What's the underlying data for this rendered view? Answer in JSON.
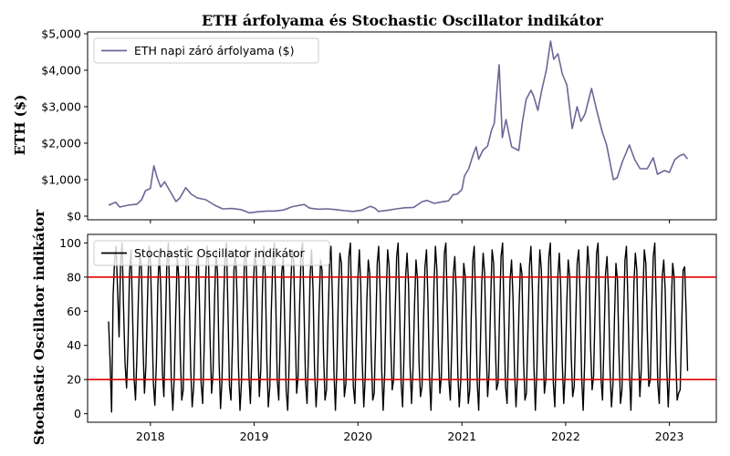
{
  "chart_data": [
    {
      "type": "line",
      "title": "ETH árfolyama és Stochastic Oscillator indikátor",
      "xlabel": "",
      "ylabel": "ETH ($)",
      "x_ticks": [
        "2018",
        "2019",
        "2020",
        "2021",
        "2022",
        "2023"
      ],
      "xlim": [
        "2017-05-25",
        "2023-06-15"
      ],
      "ylim": [
        -100,
        5050
      ],
      "y_ticks": [
        0,
        1000,
        2000,
        3000,
        4000,
        5000
      ],
      "y_tick_labels": [
        "$0",
        "$1,000",
        "$2,000",
        "$3,000",
        "$4,000",
        "$5,000"
      ],
      "legend_position": "upper-left",
      "series": [
        {
          "name": "ETH napi záró árfolyama ($)",
          "color": "#6b6796",
          "x": [
            "2017-08-07",
            "2017-09-01",
            "2017-09-15",
            "2017-10-15",
            "2017-11-15",
            "2017-12-01",
            "2017-12-15",
            "2018-01-01",
            "2018-01-13",
            "2018-01-25",
            "2018-02-06",
            "2018-02-20",
            "2018-03-10",
            "2018-04-01",
            "2018-04-15",
            "2018-05-05",
            "2018-05-25",
            "2018-06-15",
            "2018-07-15",
            "2018-08-15",
            "2018-09-12",
            "2018-10-15",
            "2018-11-15",
            "2018-12-15",
            "2019-01-15",
            "2019-02-15",
            "2019-03-15",
            "2019-04-15",
            "2019-05-15",
            "2019-06-26",
            "2019-07-15",
            "2019-08-15",
            "2019-09-15",
            "2019-10-15",
            "2019-11-15",
            "2019-12-15",
            "2020-01-15",
            "2020-02-14",
            "2020-03-01",
            "2020-03-13",
            "2020-04-15",
            "2020-05-15",
            "2020-06-15",
            "2020-07-15",
            "2020-08-15",
            "2020-09-01",
            "2020-09-25",
            "2020-10-15",
            "2020-11-15",
            "2020-12-01",
            "2020-12-15",
            "2021-01-01",
            "2021-01-10",
            "2021-01-25",
            "2021-02-10",
            "2021-02-20",
            "2021-03-01",
            "2021-03-15",
            "2021-04-01",
            "2021-04-15",
            "2021-04-25",
            "2021-05-05",
            "2021-05-12",
            "2021-05-23",
            "2021-06-05",
            "2021-06-25",
            "2021-07-20",
            "2021-08-01",
            "2021-08-15",
            "2021-09-01",
            "2021-09-10",
            "2021-09-25",
            "2021-10-10",
            "2021-10-25",
            "2021-11-09",
            "2021-11-20",
            "2021-12-05",
            "2021-12-20",
            "2022-01-05",
            "2022-01-24",
            "2022-02-10",
            "2022-02-24",
            "2022-03-10",
            "2022-04-02",
            "2022-04-20",
            "2022-05-10",
            "2022-05-25",
            "2022-06-18",
            "2022-07-01",
            "2022-07-20",
            "2022-08-13",
            "2022-09-01",
            "2022-09-20",
            "2022-10-15",
            "2022-11-05",
            "2022-11-20",
            "2022-12-15",
            "2023-01-01",
            "2023-01-20",
            "2023-02-05",
            "2023-02-20",
            "2023-03-06"
          ],
          "y": [
            300,
            380,
            250,
            300,
            330,
            450,
            700,
            760,
            1380,
            1050,
            800,
            940,
            700,
            400,
            500,
            780,
            600,
            500,
            450,
            300,
            200,
            210,
            180,
            90,
            120,
            140,
            140,
            170,
            260,
            320,
            220,
            190,
            200,
            180,
            150,
            130,
            165,
            270,
            220,
            130,
            160,
            200,
            230,
            240,
            400,
            430,
            350,
            380,
            420,
            590,
            600,
            730,
            1100,
            1300,
            1700,
            1900,
            1560,
            1800,
            1920,
            2350,
            2550,
            3500,
            4150,
            2150,
            2650,
            1900,
            1800,
            2550,
            3200,
            3450,
            3300,
            2900,
            3500,
            4000,
            4800,
            4300,
            4450,
            3900,
            3600,
            2400,
            3000,
            2600,
            2800,
            3500,
            2900,
            2300,
            1950,
            1000,
            1050,
            1500,
            1950,
            1550,
            1300,
            1300,
            1600,
            1150,
            1250,
            1200,
            1550,
            1650,
            1700,
            1570
          ]
        }
      ]
    },
    {
      "type": "line",
      "title": "",
      "xlabel": "",
      "ylabel": "Stochastic Oscillator indikátor",
      "x_ticks": [
        "2018",
        "2019",
        "2020",
        "2021",
        "2022",
        "2023"
      ],
      "xlim": [
        "2017-05-25",
        "2023-06-15"
      ],
      "ylim": [
        -5,
        105
      ],
      "y_ticks": [
        0,
        20,
        40,
        60,
        80,
        100
      ],
      "legend_position": "upper-left",
      "reference_lines": [
        {
          "y": 80,
          "color": "#e00000"
        },
        {
          "y": 20,
          "color": "#e00000"
        }
      ],
      "series": [
        {
          "name": "Stochastic Oscillator indikátor",
          "color": "#000000",
          "x_start": "2017-08-07",
          "x_end": "2023-03-06",
          "y": [
            54,
            30,
            1,
            70,
            90,
            98,
            72,
            45,
            88,
            100,
            62,
            30,
            15,
            40,
            82,
            96,
            60,
            22,
            8,
            35,
            70,
            94,
            85,
            40,
            12,
            28,
            66,
            98,
            90,
            55,
            18,
            5,
            30,
            75,
            95,
            72,
            25,
            10,
            48,
            88,
            100,
            64,
            20,
            2,
            22,
            60,
            92,
            80,
            36,
            8,
            14,
            58,
            94,
            98,
            70,
            26,
            4,
            16,
            52,
            86,
            94,
            60,
            18,
            6,
            38,
            78,
            98,
            88,
            44,
            12,
            24,
            68,
            96,
            82,
            30,
            3,
            20,
            64,
            92,
            100,
            58,
            16,
            8,
            42,
            84,
            96,
            70,
            28,
            2,
            18,
            56,
            90,
            98,
            62,
            22,
            6,
            34,
            76,
            94,
            86,
            40,
            10,
            26,
            70,
            98,
            80,
            32,
            4,
            16,
            60,
            88,
            100,
            66,
            20,
            8,
            44,
            82,
            92,
            54,
            14,
            2,
            30,
            74,
            96,
            90,
            48,
            12,
            22,
            64,
            94,
            100,
            58,
            18,
            6,
            38,
            80,
            96,
            72,
            26,
            4,
            20,
            62,
            90,
            84,
            36,
            8,
            14,
            52,
            86,
            98,
            68,
            24,
            2,
            28,
            72,
            94,
            88,
            42,
            10,
            18,
            60,
            92,
            100,
            56,
            16,
            6,
            40,
            78,
            96,
            74,
            30,
            4,
            22,
            66,
            90,
            82,
            34,
            8,
            12,
            50,
            88,
            98,
            70,
            26,
            2,
            24,
            68,
            96,
            86,
            44,
            14,
            20,
            58,
            92,
            100,
            62,
            18,
            4,
            36,
            80,
            94,
            76,
            28,
            6,
            26,
            64,
            90,
            78,
            30,
            10,
            16,
            54,
            86,
            96,
            66,
            22,
            2,
            30,
            74,
            98,
            84,
            40,
            12,
            22,
            62,
            94,
            100,
            60,
            20,
            8,
            42,
            82,
            92,
            70,
            24,
            4,
            20,
            58,
            88,
            80,
            36,
            6,
            14,
            56,
            90,
            98,
            64,
            18,
            2,
            34,
            76,
            94,
            82,
            38,
            10,
            24,
            66,
            96,
            88,
            46,
            14,
            18,
            60,
            92,
            100,
            56,
            16,
            6,
            40,
            78,
            90,
            68,
            26,
            4,
            22,
            62,
            88,
            82,
            32,
            8,
            12,
            50,
            86,
            98,
            72,
            28,
            2,
            26,
            70,
            96,
            84,
            42,
            12,
            20,
            58,
            92,
            100,
            60,
            18,
            4,
            36,
            80,
            94,
            74,
            30,
            6,
            24,
            64,
            90,
            80,
            34,
            10,
            16,
            54,
            88,
            96,
            68,
            22,
            2,
            30,
            74,
            98,
            86,
            40,
            14,
            22,
            62,
            94,
            100,
            58,
            20,
            8,
            44,
            82,
            92,
            70,
            26,
            4,
            18,
            56,
            88,
            78,
            36,
            6,
            14,
            52,
            90,
            98,
            66,
            24,
            2,
            32,
            76,
            94,
            84,
            38,
            10,
            26,
            68,
            96,
            88,
            48,
            16,
            20,
            60,
            92,
            100,
            62,
            18,
            6,
            42,
            80,
            90,
            72,
            28,
            4,
            24,
            64,
            88,
            80,
            34,
            8,
            12,
            14,
            50,
            84,
            86,
            60,
            25
          ]
        }
      ]
    }
  ]
}
